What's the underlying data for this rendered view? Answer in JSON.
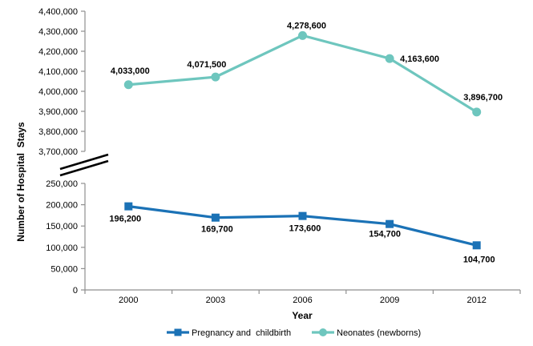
{
  "chart_data": {
    "type": "line",
    "title": "",
    "xlabel": "Year",
    "ylabel": "Number of Hospital  Stays",
    "categories": [
      "2000",
      "2003",
      "2006",
      "2009",
      "2012"
    ],
    "series": [
      {
        "name": "Pregnancy and  childbirth",
        "color": "#1B72B6",
        "marker": "square",
        "panel": "lower",
        "values": [
          196200,
          169700,
          173600,
          154700,
          104700
        ],
        "point_labels": [
          "196,200",
          "169,700",
          "173,600",
          "154,700",
          "104,700"
        ]
      },
      {
        "name": "Neonates (newborns)",
        "color": "#6EC6BE",
        "marker": "circle",
        "panel": "upper",
        "values": [
          4033000,
          4071500,
          4278600,
          4163600,
          3896700
        ],
        "point_labels": [
          "4,033,000",
          "4,071,500",
          "4,278,600",
          "4,163,600",
          "3,896,700"
        ]
      }
    ],
    "axes": {
      "upper": {
        "min": 3700000,
        "max": 4400000,
        "step": 100000,
        "tick_labels": [
          "4,400,000",
          "4,300,000",
          "4,200,000",
          "4,100,000",
          "4,000,000",
          "3,900,000",
          "3,800,000",
          "3,700,000"
        ]
      },
      "lower": {
        "min": 0,
        "max": 250000,
        "step": 50000,
        "tick_labels": [
          "250,000",
          "200,000",
          "150,000",
          "100,000",
          "50,000",
          "0"
        ]
      },
      "broken_y_axis": true
    },
    "grid": false,
    "legend_position": "bottom"
  },
  "colors": {
    "axis_line": "#8F8F8F",
    "break_mark": "#000000",
    "label_text": "#000000",
    "background": "#FFFFFF"
  }
}
